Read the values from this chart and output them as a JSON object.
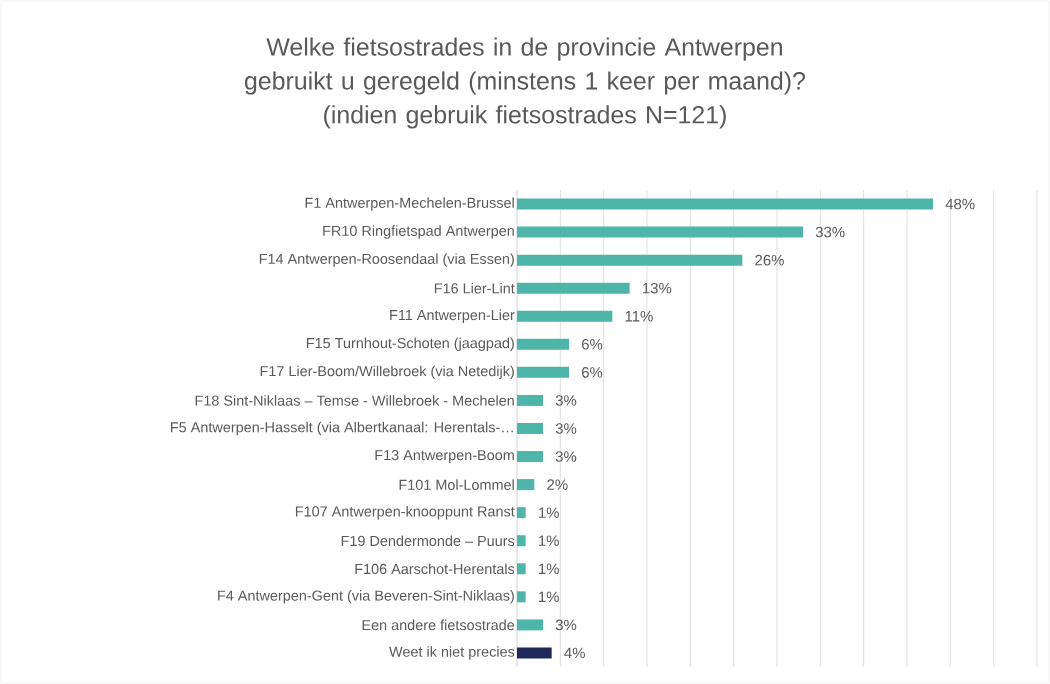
{
  "chart_data": {
    "type": "bar",
    "orientation": "horizontal",
    "title": "Welke fietsostrades in de provincie Antwerpen gebruikt u geregeld (minstens 1 keer per maand)?",
    "subtitle": "(indien gebruik fietsostrades N=121)",
    "categories": [
      "F1 Antwerpen-Mechelen-Brussel",
      "FR10 Ringfietspad Antwerpen",
      "F14 Antwerpen-Roosendaal (via Essen)",
      "F16 Lier-Lint",
      "F11 Antwerpen-Lier",
      "F15 Turnhout-Schoten (jaagpad)",
      "F17 Lier-Boom/Willebroek (via Netedijk)",
      "F18 Sint-Niklaas – Temse - Willebroek - Mechelen",
      "F5 Antwerpen-Hasselt (via Albertkanaal: Herentals-…",
      "F13 Antwerpen-Boom",
      "F101 Mol-Lommel",
      "F107 Antwerpen-knooppunt Ranst",
      "F19 Dendermonde – Puurs",
      "F106 Aarschot-Herentals",
      "F4 Antwerpen-Gent (via Beveren-Sint-Niklaas)",
      "Een andere fietsostrade",
      "Weet ik niet precies"
    ],
    "values": [
      48,
      33,
      26,
      13,
      11,
      6,
      6,
      3,
      3,
      3,
      2,
      1,
      1,
      1,
      1,
      3,
      4
    ],
    "value_labels": [
      "48%",
      "33%",
      "26%",
      "13%",
      "11%",
      "6%",
      "6%",
      "3%",
      "3%",
      "3%",
      "2%",
      "1%",
      "1%",
      "1%",
      "1%",
      "3%",
      "4%"
    ],
    "colors": [
      "#4db6a8",
      "#4db6a8",
      "#4db6a8",
      "#4db6a8",
      "#4db6a8",
      "#4db6a8",
      "#4db6a8",
      "#4db6a8",
      "#4db6a8",
      "#4db6a8",
      "#4db6a8",
      "#4db6a8",
      "#4db6a8",
      "#4db6a8",
      "#4db6a8",
      "#4db6a8",
      "#1f2a5a"
    ],
    "grid": "x",
    "tick_labels": "y"
  }
}
